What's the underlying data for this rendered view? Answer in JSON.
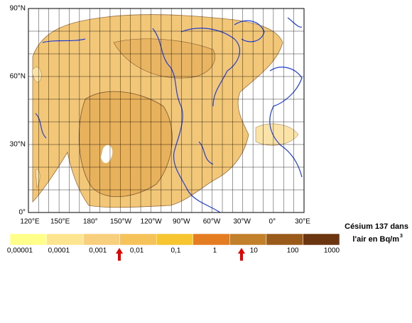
{
  "map": {
    "lat_labels": [
      "90°N",
      "60°N",
      "30°N",
      "0°"
    ],
    "lon_labels": [
      "120°E",
      "150°E",
      "180°",
      "150°W",
      "120°W",
      "90°W",
      "60°W",
      "30°W",
      "0°",
      "30°E"
    ]
  },
  "legend": {
    "title_line1": "Césium 137 dans",
    "title_line2": "l'air en Bq/m",
    "title_sup": "3",
    "labels": [
      "0,00001",
      "0,0001",
      "0,001",
      "0,01",
      "0,1",
      "1",
      "10",
      "100",
      "1000"
    ],
    "colors": [
      "#ffff8a",
      "#fde58f",
      "#f8cf7c",
      "#f6c25a",
      "#f7c530",
      "#e47d22",
      "#c3802a",
      "#9a5a1a",
      "#6b3510"
    ]
  }
}
